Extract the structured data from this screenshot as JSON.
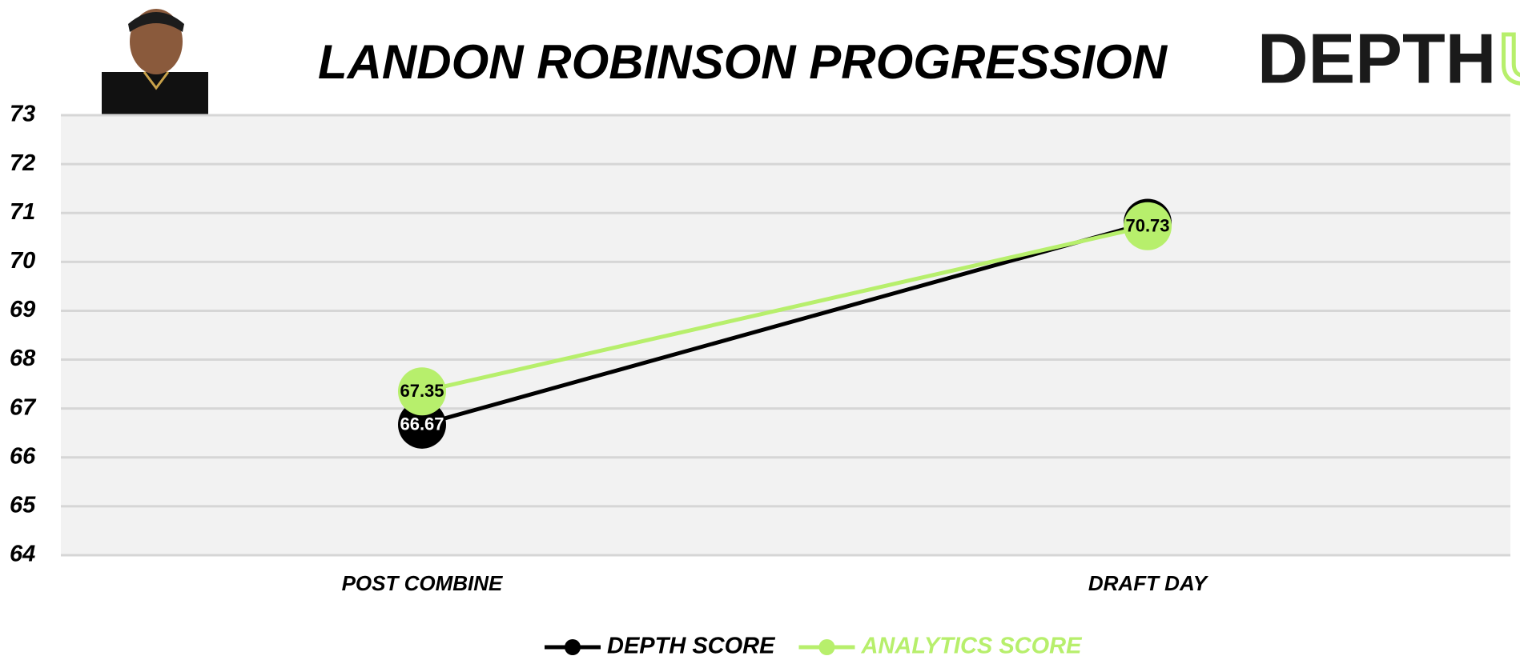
{
  "chart_data": {
    "type": "line",
    "title": "LANDON ROBINSON PROGRESSION",
    "logo": {
      "text": "DEPTH",
      "accent": "U"
    },
    "categories": [
      "POST COMBINE",
      "DRAFT DAY"
    ],
    "series": [
      {
        "name": "DEPTH SCORE",
        "color": "#000000",
        "label_color": "#ffffff",
        "values": [
          66.67,
          70.8
        ],
        "value_labels": [
          "66.67",
          "70.80"
        ]
      },
      {
        "name": "ANALYTICS SCORE",
        "color": "#b7ef6c",
        "label_color": "#000000",
        "values": [
          67.35,
          70.73
        ]
      }
    ],
    "ylim": [
      64,
      73
    ],
    "yticks": [
      64,
      65,
      66,
      67,
      68,
      69,
      70,
      71,
      72,
      73
    ],
    "grid": true
  }
}
